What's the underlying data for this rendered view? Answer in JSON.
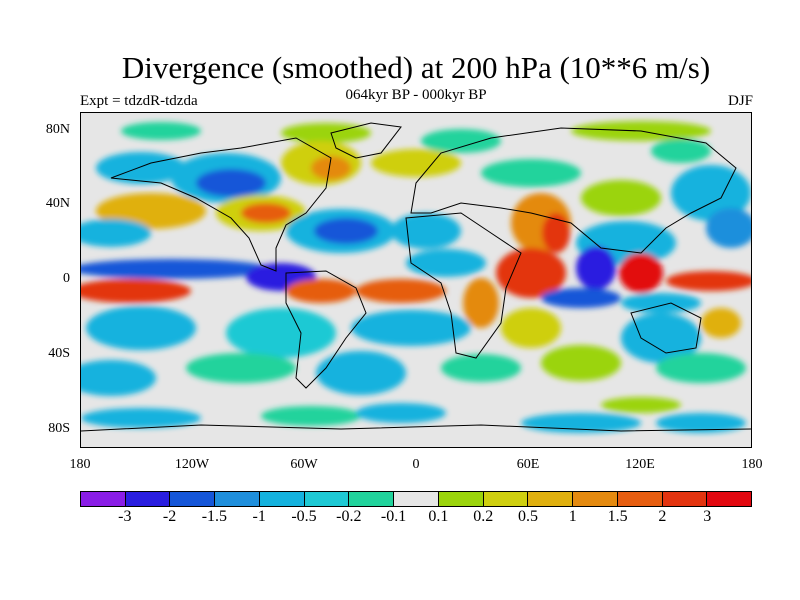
{
  "title": "Divergence (smoothed) at 200 hPa (10**6 m/s)",
  "subtitle": "064kyr BP - 000kyr BP",
  "experiment": "Expt = tdzdR-tdzda",
  "season": "DJF",
  "lat_ticks": [
    "80N",
    "40N",
    "0",
    "40S",
    "80S"
  ],
  "lon_ticks": [
    "180",
    "120W",
    "60W",
    "0",
    "60E",
    "120E",
    "180"
  ],
  "colorbar": {
    "labels": [
      "-3",
      "-2",
      "-1.5",
      "-1",
      "-0.5",
      "-0.2",
      "-0.1",
      "0.1",
      "0.2",
      "0.5",
      "1",
      "1.5",
      "2",
      "3"
    ],
    "colors": [
      "#8a1de6",
      "#2a1ee0",
      "#1556d8",
      "#1f8fdc",
      "#14b2de",
      "#1ec9d4",
      "#21d39c",
      "#e6e6e6",
      "#9bd40c",
      "#cfcf10",
      "#e0b00f",
      "#e48a10",
      "#e65d10",
      "#e33410",
      "#e20810"
    ]
  }
}
